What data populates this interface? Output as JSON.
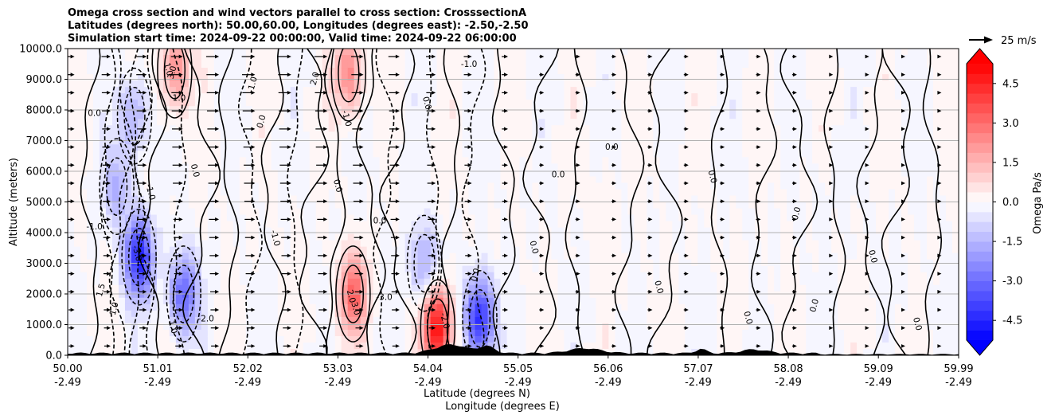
{
  "chart_data": {
    "type": "heatmap",
    "title_lines": [
      "Omega cross section and wind vectors parallel to cross section: CrosssectionA",
      "Latitudes (degrees north): 50.00,60.00, Longitudes (degrees east): -2.50,-2.50",
      "Simulation start time: 2024-09-22 00:00:00, Valid time: 2024-09-22 06:00:00"
    ],
    "ylabel": "Altitude (meters)",
    "xlabel_line1": "Latitude (degrees N)",
    "xlabel_line2": "Longitude (degrees E)",
    "ylim": [
      0,
      10000
    ],
    "y_ticks": [
      "0.0",
      "1000.0",
      "2000.0",
      "3000.0",
      "4000.0",
      "5000.0",
      "6000.0",
      "7000.0",
      "8000.0",
      "9000.0",
      "10000.0"
    ],
    "x_ticks": [
      {
        "lat": "50.00",
        "lon": "-2.49"
      },
      {
        "lat": "51.01",
        "lon": "-2.49"
      },
      {
        "lat": "52.02",
        "lon": "-2.49"
      },
      {
        "lat": "53.03",
        "lon": "-2.49"
      },
      {
        "lat": "54.04",
        "lon": "-2.49"
      },
      {
        "lat": "55.05",
        "lon": "-2.49"
      },
      {
        "lat": "56.06",
        "lon": "-2.49"
      },
      {
        "lat": "57.07",
        "lon": "-2.49"
      },
      {
        "lat": "58.08",
        "lon": "-2.49"
      },
      {
        "lat": "59.09",
        "lon": "-2.49"
      },
      {
        "lat": "59.99",
        "lon": "-2.49"
      }
    ],
    "grid": "horizontal",
    "colorbar": {
      "label": "Omega Pa/s",
      "range": [
        -5.25,
        5.25
      ],
      "step": 0.375,
      "ticks": [
        "-4.5",
        "-3.0",
        "-1.5",
        "0.0",
        "1.5",
        "3.0",
        "4.5"
      ],
      "tick_values": [
        -4.5,
        -3.0,
        -1.5,
        0.0,
        1.5,
        3.0,
        4.5
      ],
      "extend": "both",
      "colormap": "bwr"
    },
    "quiver_key": {
      "label": "25 m/s",
      "value": 25
    },
    "contour_labels": [
      "0.0",
      "-1.0",
      "1.0",
      "2.0",
      "-2.0",
      "-3.0",
      "3.0",
      "1.5",
      "-1.5"
    ],
    "omega_features": [
      {
        "lat": 50.55,
        "alt": 5500,
        "omega": -1.5
      },
      {
        "lat": 50.75,
        "alt": 7800,
        "omega": -1.8
      },
      {
        "lat": 50.8,
        "alt": 3200,
        "omega": -4.5
      },
      {
        "lat": 51.3,
        "alt": 2000,
        "omega": -3.2
      },
      {
        "lat": 51.2,
        "alt": 9300,
        "omega": 2.3
      },
      {
        "lat": 53.15,
        "alt": 9200,
        "omega": 2.5
      },
      {
        "lat": 53.2,
        "alt": 2000,
        "omega": 3.0
      },
      {
        "lat": 54.0,
        "alt": 3000,
        "omega": -1.8
      },
      {
        "lat": 54.15,
        "alt": 900,
        "omega": 5.0
      },
      {
        "lat": 54.62,
        "alt": 1200,
        "omega": -4.5
      },
      {
        "lat": 56.0,
        "alt": 5000,
        "omega": 0.3
      },
      {
        "lat": 58.5,
        "alt": 5000,
        "omega": -0.2
      }
    ]
  }
}
